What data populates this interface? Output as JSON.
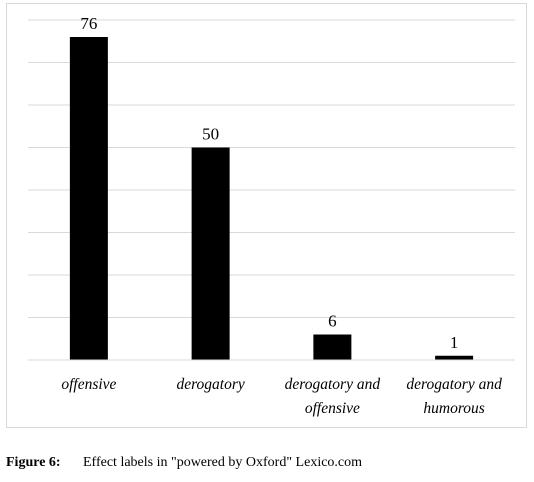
{
  "chart_data": {
    "type": "bar",
    "categories": [
      "offensive",
      "derogatory",
      "derogatory and offensive",
      "derogatory and humorous"
    ],
    "category_lines": [
      [
        "offensive"
      ],
      [
        "derogatory"
      ],
      [
        "derogatory and",
        "offensive"
      ],
      [
        "derogatory and",
        "humorous"
      ]
    ],
    "values": [
      76,
      50,
      6,
      1
    ],
    "data_labels": [
      "76",
      "50",
      "6",
      "1"
    ],
    "ylim": [
      0,
      80
    ],
    "grid_step": 10,
    "grid": true,
    "bar_color": "#000000",
    "grid_color": "#d9d9d9",
    "title": "",
    "xlabel": "",
    "ylabel": ""
  },
  "caption": {
    "figure_number": "Figure 6:",
    "text": "Effect labels in \"powered by Oxford\" Lexico.com"
  }
}
